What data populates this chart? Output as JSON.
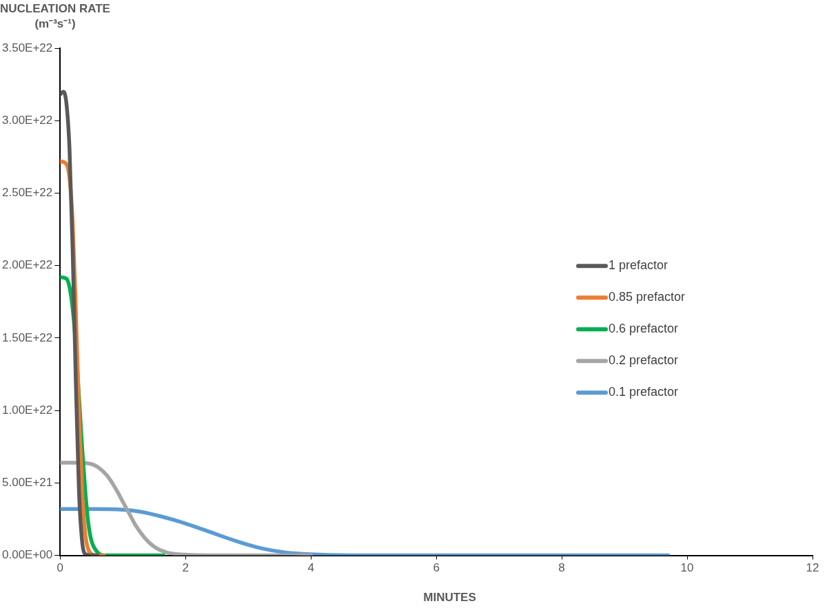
{
  "chart_data": {
    "type": "line",
    "xlabel": "MINUTES",
    "ylabel": "NUCLEATION RATE\n(m⁻³s⁻¹)",
    "xlim": [
      0,
      12
    ],
    "xticks": [
      0,
      2,
      4,
      6,
      8,
      10,
      12
    ],
    "ylim": [
      0,
      3.5e+22
    ],
    "yticks": [
      {
        "value": 0,
        "label": "0.00E+00"
      },
      {
        "value": 5e+21,
        "label": "5.00E+21"
      },
      {
        "value": 1e+22,
        "label": "1.00E+22"
      },
      {
        "value": 1.5e+22,
        "label": "1.50E+22"
      },
      {
        "value": 2e+22,
        "label": "2.00E+22"
      },
      {
        "value": 2.5e+22,
        "label": "2.50E+22"
      },
      {
        "value": 3e+22,
        "label": "3.00E+22"
      },
      {
        "value": 3.5e+22,
        "label": "3.50E+22"
      }
    ],
    "grid": false,
    "legend": "right",
    "marker": "none",
    "line_style": "solid",
    "series": [
      {
        "name": "1 prefactor",
        "color": "#595959",
        "x": [
          0,
          0.05,
          0.1,
          0.15,
          0.2,
          0.25,
          0.3,
          0.35,
          0.4,
          0.5,
          0.6
        ],
        "values": [
          3.18e+22,
          3.2e+22,
          3.12e+22,
          2.8e+22,
          2.1e+22,
          1.2e+22,
          4.5e+21,
          1e+21,
          1e+20,
          0,
          0
        ]
      },
      {
        "name": "0.85 prefactor",
        "color": "#ed7d31",
        "x": [
          0,
          0.1,
          0.15,
          0.2,
          0.25,
          0.3,
          0.35,
          0.4,
          0.45,
          0.5,
          0.6,
          0.7
        ],
        "values": [
          2.72e+22,
          2.7e+22,
          2.6e+22,
          2.3e+22,
          1.7e+22,
          1e+22,
          4.5e+21,
          1.5e+21,
          4e+20,
          1e+20,
          0,
          0
        ]
      },
      {
        "name": "0.6 prefactor",
        "color": "#00b050",
        "x": [
          0,
          0.1,
          0.15,
          0.2,
          0.25,
          0.3,
          0.35,
          0.4,
          0.45,
          0.5,
          0.6,
          0.7,
          1.65
        ],
        "values": [
          1.92e+22,
          1.91e+22,
          1.85e+22,
          1.7e+22,
          1.45e+22,
          1.1e+22,
          7.5e+21,
          4.5e+21,
          2.2e+21,
          1e+21,
          2e+20,
          0,
          0
        ]
      },
      {
        "name": "0.2 prefactor",
        "color": "#a5a5a5",
        "x": [
          0,
          0.3,
          0.5,
          0.6,
          0.75,
          0.9,
          1,
          1.1,
          1.2,
          1.35,
          1.5,
          1.7,
          2,
          2.5,
          4
        ],
        "values": [
          6.4e+21,
          6.4e+21,
          6.3e+21,
          6.1e+21,
          5.5e+21,
          4.5e+21,
          3.7e+21,
          2.9e+21,
          2.1e+21,
          1.2e+21,
          6e+20,
          2e+20,
          5e+19,
          0,
          0
        ]
      },
      {
        "name": "0.1 prefactor",
        "color": "#5b9bd5",
        "x": [
          0,
          0.5,
          1,
          1.3,
          1.6,
          2,
          2.4,
          2.8,
          3.2,
          3.6,
          4,
          5,
          9.7
        ],
        "values": [
          3.2e+21,
          3.2e+21,
          3.15e+21,
          3e+21,
          2.7e+21,
          2.2e+21,
          1.6e+21,
          1e+21,
          5e+20,
          2e+20,
          8e+19,
          0,
          0
        ]
      }
    ]
  }
}
